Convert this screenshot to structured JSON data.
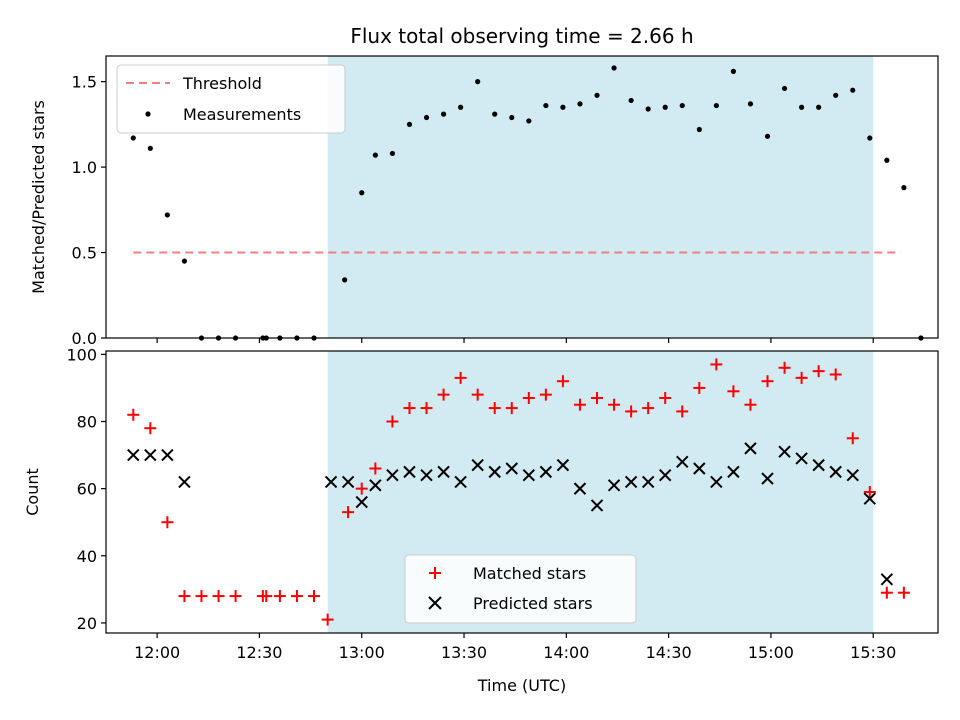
{
  "chart_data": [
    {
      "type": "scatter",
      "title": "Flux total observing time = 2.66 h",
      "xlabel": "",
      "ylabel": "Matched/Predicted stars",
      "xlim": [
        "11:45",
        "15:49"
      ],
      "ylim": [
        0,
        1.65
      ],
      "yticks": [
        "0.0",
        "0.5",
        "1.0",
        "1.5"
      ],
      "grid": false,
      "legend_position": "top-left",
      "shaded_span": [
        "12:50",
        "15:30"
      ],
      "shade_color": "#add8e6",
      "threshold": {
        "name": "Threshold",
        "y": 0.5,
        "x_range": [
          "11:53",
          "15:38"
        ],
        "color": "#f08080"
      },
      "series": [
        {
          "name": "Measurements",
          "color": "#000000",
          "points": [
            [
              "11:53",
              1.17
            ],
            [
              "11:58",
              1.11
            ],
            [
              "12:03",
              0.72
            ],
            [
              "12:08",
              0.45
            ],
            [
              "12:13",
              0.0
            ],
            [
              "12:18",
              0.0
            ],
            [
              "12:23",
              0.0
            ],
            [
              "12:31",
              0.0
            ],
            [
              "12:32",
              0.0
            ],
            [
              "12:36",
              0.0
            ],
            [
              "12:41",
              0.0
            ],
            [
              "12:46",
              0.0
            ],
            [
              "12:55",
              0.34
            ],
            [
              "13:00",
              0.85
            ],
            [
              "13:04",
              1.07
            ],
            [
              "13:09",
              1.08
            ],
            [
              "13:14",
              1.25
            ],
            [
              "13:19",
              1.29
            ],
            [
              "13:24",
              1.31
            ],
            [
              "13:29",
              1.35
            ],
            [
              "13:34",
              1.5
            ],
            [
              "13:39",
              1.31
            ],
            [
              "13:44",
              1.29
            ],
            [
              "13:49",
              1.27
            ],
            [
              "13:54",
              1.36
            ],
            [
              "13:59",
              1.35
            ],
            [
              "14:04",
              1.37
            ],
            [
              "14:09",
              1.42
            ],
            [
              "14:14",
              1.58
            ],
            [
              "14:19",
              1.39
            ],
            [
              "14:24",
              1.34
            ],
            [
              "14:29",
              1.35
            ],
            [
              "14:34",
              1.36
            ],
            [
              "14:39",
              1.22
            ],
            [
              "14:44",
              1.36
            ],
            [
              "14:49",
              1.56
            ],
            [
              "14:54",
              1.37
            ],
            [
              "14:59",
              1.18
            ],
            [
              "15:04",
              1.46
            ],
            [
              "15:09",
              1.35
            ],
            [
              "15:14",
              1.35
            ],
            [
              "15:19",
              1.42
            ],
            [
              "15:24",
              1.45
            ],
            [
              "15:29",
              1.17
            ],
            [
              "15:34",
              1.04
            ],
            [
              "15:39",
              0.88
            ],
            [
              "15:44",
              0.0
            ]
          ]
        }
      ]
    },
    {
      "type": "scatter",
      "title": "",
      "xlabel": "Time (UTC)",
      "ylabel": "Count",
      "xlim": [
        "11:45",
        "15:49"
      ],
      "ylim": [
        17,
        101
      ],
      "xticks": [
        "12:00",
        "12:30",
        "13:00",
        "13:30",
        "14:00",
        "14:30",
        "15:00",
        "15:30"
      ],
      "yticks": [
        "20",
        "40",
        "60",
        "80",
        "100"
      ],
      "grid": false,
      "legend_position": "bottom-center",
      "shaded_span": [
        "12:50",
        "15:30"
      ],
      "series": [
        {
          "name": "Matched stars",
          "marker": "+",
          "color": "#ff0000",
          "points": [
            [
              "11:53",
              82
            ],
            [
              "11:58",
              78
            ],
            [
              "12:03",
              50
            ],
            [
              "12:08",
              28
            ],
            [
              "12:13",
              28
            ],
            [
              "12:18",
              28
            ],
            [
              "12:23",
              28
            ],
            [
              "12:31",
              28
            ],
            [
              "12:32",
              28
            ],
            [
              "12:36",
              28
            ],
            [
              "12:41",
              28
            ],
            [
              "12:46",
              28
            ],
            [
              "12:50",
              21
            ],
            [
              "12:56",
              53
            ],
            [
              "13:00",
              60
            ],
            [
              "13:04",
              66
            ],
            [
              "13:09",
              80
            ],
            [
              "13:14",
              84
            ],
            [
              "13:19",
              84
            ],
            [
              "13:24",
              88
            ],
            [
              "13:29",
              93
            ],
            [
              "13:34",
              88
            ],
            [
              "13:39",
              84
            ],
            [
              "13:44",
              84
            ],
            [
              "13:49",
              87
            ],
            [
              "13:54",
              88
            ],
            [
              "13:59",
              92
            ],
            [
              "14:04",
              85
            ],
            [
              "14:09",
              87
            ],
            [
              "14:14",
              85
            ],
            [
              "14:19",
              83
            ],
            [
              "14:24",
              84
            ],
            [
              "14:29",
              87
            ],
            [
              "14:34",
              83
            ],
            [
              "14:39",
              90
            ],
            [
              "14:44",
              97
            ],
            [
              "14:49",
              89
            ],
            [
              "14:54",
              85
            ],
            [
              "14:59",
              92
            ],
            [
              "15:04",
              96
            ],
            [
              "15:09",
              93
            ],
            [
              "15:14",
              95
            ],
            [
              "15:19",
              94
            ],
            [
              "15:24",
              75
            ],
            [
              "15:29",
              59
            ],
            [
              "15:34",
              29
            ],
            [
              "15:39",
              29
            ]
          ]
        },
        {
          "name": "Predicted stars",
          "marker": "x",
          "color": "#000000",
          "points": [
            [
              "11:53",
              70
            ],
            [
              "11:58",
              70
            ],
            [
              "12:03",
              70
            ],
            [
              "12:08",
              62
            ],
            [
              "12:51",
              62
            ],
            [
              "12:56",
              62
            ],
            [
              "13:00",
              56
            ],
            [
              "13:04",
              61
            ],
            [
              "13:09",
              64
            ],
            [
              "13:14",
              65
            ],
            [
              "13:19",
              64
            ],
            [
              "13:24",
              65
            ],
            [
              "13:29",
              62
            ],
            [
              "13:34",
              67
            ],
            [
              "13:39",
              65
            ],
            [
              "13:44",
              66
            ],
            [
              "13:49",
              64
            ],
            [
              "13:54",
              65
            ],
            [
              "13:59",
              67
            ],
            [
              "14:04",
              60
            ],
            [
              "14:09",
              55
            ],
            [
              "14:14",
              61
            ],
            [
              "14:19",
              62
            ],
            [
              "14:24",
              62
            ],
            [
              "14:29",
              64
            ],
            [
              "14:34",
              68
            ],
            [
              "14:39",
              66
            ],
            [
              "14:44",
              62
            ],
            [
              "14:49",
              65
            ],
            [
              "14:54",
              72
            ],
            [
              "14:59",
              63
            ],
            [
              "15:04",
              71
            ],
            [
              "15:09",
              69
            ],
            [
              "15:14",
              67
            ],
            [
              "15:19",
              65
            ],
            [
              "15:24",
              64
            ],
            [
              "15:29",
              57
            ],
            [
              "15:34",
              33
            ]
          ]
        }
      ]
    }
  ]
}
